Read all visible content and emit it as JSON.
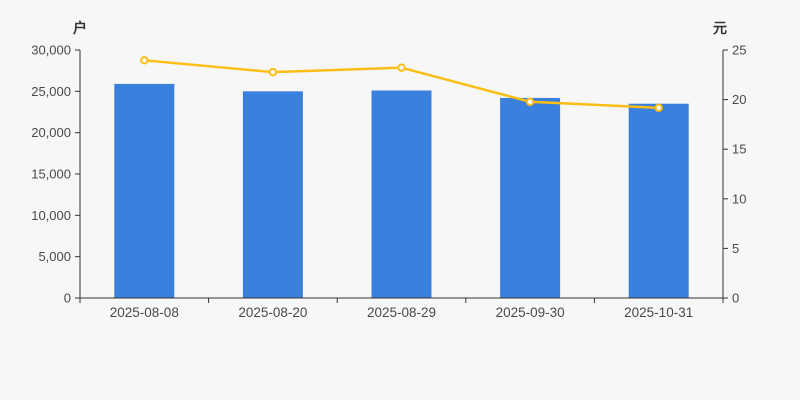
{
  "chart_data": {
    "type": "bar",
    "categories": [
      "2025-08-08",
      "2025-08-20",
      "2025-08-29",
      "2025-09-30",
      "2025-10-31"
    ],
    "series": [
      {
        "id": "bar-series",
        "type": "bar",
        "axis": "left",
        "values": [
          25900,
          25000,
          25100,
          24200,
          23500
        ],
        "color": "#3B80DC"
      },
      {
        "id": "line-series",
        "type": "line",
        "axis": "right",
        "values": [
          23.96,
          22.77,
          23.22,
          19.78,
          19.17
        ],
        "color": "#FBBE16",
        "marker": "hollow-circle",
        "marker_fill": "#FDFDFD"
      }
    ],
    "left_axis": {
      "unit": "户",
      "min": 0,
      "max": 30000,
      "interval": 5000,
      "tick_labels": [
        "0",
        "5,000",
        "10,000",
        "15,000",
        "20,000",
        "25,000",
        "30,000"
      ]
    },
    "right_axis": {
      "unit": "元",
      "min": 0,
      "max": 25,
      "interval": 5,
      "tick_labels": [
        "0",
        "5",
        "10",
        "15",
        "20",
        "25"
      ]
    },
    "title": "",
    "legend": "none",
    "grid": "off",
    "background": "#F7F7F7",
    "axis_color": "#333333",
    "label_color": "#4A4A4A"
  }
}
